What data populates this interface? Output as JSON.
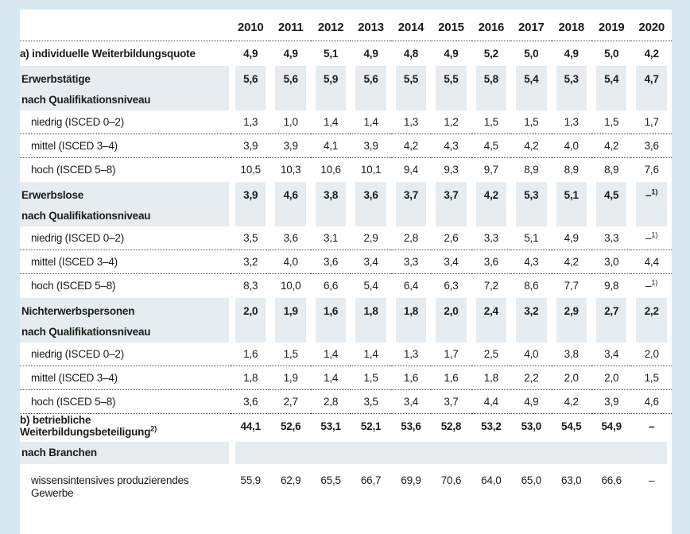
{
  "page": {
    "background_color": "#d8e8f1",
    "sheet_color": "#ffffff",
    "shade_color": "#e6ecf0",
    "text_color": "#1c1c1c"
  },
  "table": {
    "years": [
      "2010",
      "2011",
      "2012",
      "2013",
      "2014",
      "2015",
      "2016",
      "2017",
      "2018",
      "2019",
      "2020"
    ],
    "rows": [
      {
        "type": "bold",
        "label": "a) individuelle Weiterbildungsquote",
        "values": [
          "4,9",
          "4,9",
          "5,1",
          "4,9",
          "4,8",
          "4,9",
          "5,2",
          "5,0",
          "4,9",
          "5,0",
          "4,2"
        ],
        "divider_after": false
      },
      {
        "type": "group",
        "label": "Erwerbstätige",
        "sublabel": "nach Qualifikationsniveau",
        "values": [
          "5,6",
          "5,6",
          "5,9",
          "5,6",
          "5,5",
          "5,5",
          "5,8",
          "5,4",
          "5,3",
          "5,4",
          "4,7"
        ],
        "divider_after": false
      },
      {
        "type": "sub",
        "label": "niedrig (ISCED 0–2)",
        "values": [
          "1,3",
          "1,0",
          "1,4",
          "1,4",
          "1,3",
          "1,2",
          "1,5",
          "1,5",
          "1,3",
          "1,5",
          "1,7"
        ],
        "divider_after": true
      },
      {
        "type": "sub",
        "label": "mittel (ISCED 3–4)",
        "values": [
          "3,9",
          "3,9",
          "4,1",
          "3,9",
          "4,2",
          "4,3",
          "4,5",
          "4,2",
          "4,0",
          "4,2",
          "3,6"
        ],
        "divider_after": true
      },
      {
        "type": "sub",
        "label": "hoch (ISCED 5–8)",
        "values": [
          "10,5",
          "10,3",
          "10,6",
          "10,1",
          "9,4",
          "9,3",
          "9,7",
          "8,9",
          "8,9",
          "8,9",
          "7,6"
        ],
        "divider_after": false
      },
      {
        "type": "group",
        "label": "Erwerbslose",
        "sublabel": "nach Qualifikationsniveau",
        "values": [
          "3,9",
          "4,6",
          "3,8",
          "3,6",
          "3,7",
          "3,7",
          "4,2",
          "5,3",
          "5,1",
          "4,5",
          "–^1)"
        ],
        "divider_after": false
      },
      {
        "type": "sub",
        "label": "niedrig (ISCED 0–2)",
        "values": [
          "3,5",
          "3,6",
          "3,1",
          "2,9",
          "2,8",
          "2,6",
          "3,3",
          "5,1",
          "4,9",
          "3,3",
          "–^1)"
        ],
        "divider_after": true
      },
      {
        "type": "sub",
        "label": "mittel (ISCED 3–4)",
        "values": [
          "3,2",
          "4,0",
          "3,6",
          "3,4",
          "3,3",
          "3,4",
          "3,6",
          "4,3",
          "4,2",
          "3,0",
          "4,4"
        ],
        "divider_after": true
      },
      {
        "type": "sub",
        "label": "hoch (ISCED 5–8)",
        "values": [
          "8,3",
          "10,0",
          "6,6",
          "5,4",
          "6,4",
          "6,3",
          "7,2",
          "8,6",
          "7,7",
          "9,8",
          "–^1)"
        ],
        "divider_after": false
      },
      {
        "type": "group",
        "label": "Nichterwerbspersonen",
        "sublabel": "nach Qualifikationsniveau",
        "values": [
          "2,0",
          "1,9",
          "1,6",
          "1,8",
          "1,8",
          "2,0",
          "2,4",
          "3,2",
          "2,9",
          "2,7",
          "2,2"
        ],
        "divider_after": false
      },
      {
        "type": "sub",
        "label": "niedrig (ISCED 0–2)",
        "values": [
          "1,6",
          "1,5",
          "1,4",
          "1,4",
          "1,3",
          "1,7",
          "2,5",
          "4,0",
          "3,8",
          "3,4",
          "2,0"
        ],
        "divider_after": true
      },
      {
        "type": "sub",
        "label": "mittel (ISCED 3–4)",
        "values": [
          "1,8",
          "1,9",
          "1,4",
          "1,5",
          "1,6",
          "1,6",
          "1,8",
          "2,2",
          "2,0",
          "2,0",
          "1,5"
        ],
        "divider_after": true
      },
      {
        "type": "sub",
        "label": "hoch (ISCED 5–8)",
        "values": [
          "3,6",
          "2,7",
          "2,8",
          "3,5",
          "3,4",
          "3,7",
          "4,4",
          "4,9",
          "4,2",
          "3,9",
          "4,6"
        ],
        "divider_after": true
      },
      {
        "type": "bold",
        "label": "b) betriebliche Weiterbildungsbeteiligung^2)",
        "values": [
          "44,1",
          "52,6",
          "53,1",
          "52,1",
          "53,6",
          "52,8",
          "53,2",
          "53,0",
          "54,5",
          "54,9",
          "–"
        ],
        "divider_after": false
      },
      {
        "type": "branch",
        "label": "nach Branchen",
        "values": [],
        "divider_after": false
      },
      {
        "type": "subwrap",
        "label": "wissensintensives produzierendes Gewerbe",
        "values": [
          "55,9",
          "62,9",
          "65,5",
          "66,7",
          "69,9",
          "70,6",
          "64,0",
          "65,0",
          "63,0",
          "66,6",
          "–"
        ],
        "divider_after": false
      }
    ]
  }
}
